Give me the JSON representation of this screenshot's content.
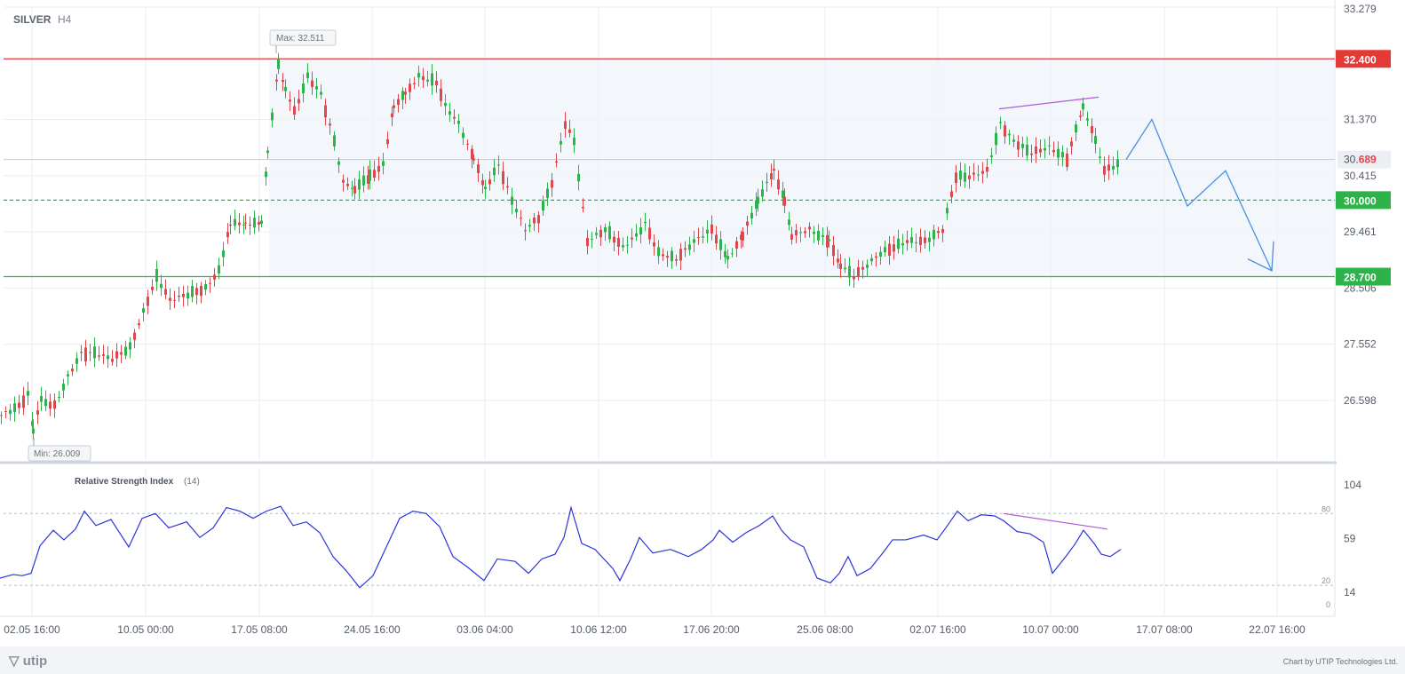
{
  "chart_data": {
    "type": "candlestick",
    "symbol": "SILVER",
    "timeframe": "H4",
    "price_axis": {
      "range": [
        25.6,
        33.279
      ],
      "ticks": [
        33.279,
        31.37,
        30.415,
        29.461,
        28.506,
        27.552,
        26.598
      ]
    },
    "levels": [
      {
        "label": "32.400",
        "value": 32.4,
        "color": "#e53935"
      },
      {
        "label": "30.000",
        "value": 30.0,
        "color": "#2db34a",
        "style": "dashed"
      },
      {
        "label": "28.700",
        "value": 28.7,
        "color": "#2db34a"
      }
    ],
    "current_price": {
      "label_main": "30.",
      "label_tail": "689",
      "value": 30.689
    },
    "max_label": "Max: 32.511",
    "min_label": "Min: 26.009",
    "x_labels": [
      "02.05 16:00",
      "10.05 00:00",
      "17.05 08:00",
      "24.05 16:00",
      "03.06 04:00",
      "10.06 12:00",
      "17.06 20:00",
      "25.06 08:00",
      "02.07 16:00",
      "10.07 00:00",
      "17.07 08:00",
      "22.07 16:00"
    ],
    "price_path": [
      [
        0,
        26.35
      ],
      [
        20,
        26.5
      ],
      [
        30,
        26.7
      ],
      [
        36,
        26.1
      ],
      [
        45,
        26.6
      ],
      [
        60,
        26.5
      ],
      [
        75,
        27.0
      ],
      [
        90,
        27.4
      ],
      [
        105,
        27.4
      ],
      [
        125,
        27.3
      ],
      [
        145,
        27.5
      ],
      [
        160,
        28.1
      ],
      [
        175,
        28.7
      ],
      [
        190,
        28.3
      ],
      [
        210,
        28.4
      ],
      [
        230,
        28.5
      ],
      [
        245,
        28.8
      ],
      [
        258,
        29.6
      ],
      [
        275,
        29.6
      ],
      [
        293,
        29.6
      ],
      [
        300,
        30.8
      ],
      [
        312,
        32.3
      ],
      [
        320,
        31.9
      ],
      [
        330,
        31.5
      ],
      [
        345,
        32.1
      ],
      [
        360,
        31.8
      ],
      [
        375,
        31.0
      ],
      [
        385,
        30.3
      ],
      [
        398,
        30.2
      ],
      [
        415,
        30.4
      ],
      [
        430,
        30.6
      ],
      [
        442,
        31.6
      ],
      [
        455,
        31.8
      ],
      [
        470,
        32.1
      ],
      [
        490,
        32.0
      ],
      [
        500,
        31.6
      ],
      [
        515,
        31.3
      ],
      [
        532,
        30.7
      ],
      [
        545,
        30.2
      ],
      [
        560,
        30.6
      ],
      [
        575,
        30.0
      ],
      [
        590,
        29.5
      ],
      [
        605,
        29.7
      ],
      [
        620,
        30.3
      ],
      [
        635,
        31.3
      ],
      [
        645,
        31.0
      ],
      [
        650,
        30.4
      ],
      [
        660,
        29.3
      ],
      [
        680,
        29.5
      ],
      [
        700,
        29.2
      ],
      [
        715,
        29.4
      ],
      [
        725,
        29.6
      ],
      [
        740,
        29.1
      ],
      [
        760,
        29.0
      ],
      [
        780,
        29.3
      ],
      [
        800,
        29.5
      ],
      [
        818,
        29.0
      ],
      [
        835,
        29.4
      ],
      [
        852,
        30.0
      ],
      [
        870,
        30.5
      ],
      [
        882,
        30.0
      ],
      [
        890,
        29.4
      ],
      [
        910,
        29.5
      ],
      [
        932,
        29.3
      ],
      [
        945,
        28.9
      ],
      [
        960,
        28.7
      ],
      [
        975,
        28.9
      ],
      [
        990,
        29.1
      ],
      [
        1005,
        29.2
      ],
      [
        1020,
        29.3
      ],
      [
        1040,
        29.3
      ],
      [
        1060,
        29.5
      ],
      [
        1075,
        30.4
      ],
      [
        1090,
        30.4
      ],
      [
        1110,
        30.5
      ],
      [
        1125,
        31.3
      ],
      [
        1140,
        31.0
      ],
      [
        1160,
        30.8
      ],
      [
        1180,
        30.9
      ],
      [
        1200,
        30.7
      ],
      [
        1218,
        31.6
      ],
      [
        1232,
        31.0
      ],
      [
        1242,
        30.5
      ],
      [
        1262,
        30.65
      ]
    ],
    "forecast_path": [
      [
        1268,
        30.69
      ],
      [
        1297,
        31.37
      ],
      [
        1337,
        29.9
      ],
      [
        1380,
        30.5
      ],
      [
        1432,
        28.8
      ]
    ],
    "forecast_tail": [
      [
        1405,
        29.0
      ],
      [
        1432,
        28.8
      ],
      [
        1434,
        29.3
      ]
    ],
    "divergence_price": [
      [
        1125,
        31.55
      ],
      [
        1237,
        31.75
      ]
    ],
    "rsi": {
      "title": "Relative Strength Index",
      "period": "(14)",
      "axis_range": [
        0,
        104
      ],
      "right_ticks": [
        104,
        59,
        14
      ],
      "inner_ticks": [
        80,
        20,
        0
      ],
      "levels": [
        80,
        20
      ],
      "path": [
        [
          0,
          26
        ],
        [
          15,
          29
        ],
        [
          25,
          28
        ],
        [
          35,
          30
        ],
        [
          45,
          53
        ],
        [
          60,
          66
        ],
        [
          72,
          58
        ],
        [
          85,
          67
        ],
        [
          95,
          82
        ],
        [
          108,
          70
        ],
        [
          125,
          75
        ],
        [
          145,
          52
        ],
        [
          160,
          76
        ],
        [
          175,
          80
        ],
        [
          190,
          68
        ],
        [
          210,
          73
        ],
        [
          225,
          60
        ],
        [
          240,
          68
        ],
        [
          255,
          85
        ],
        [
          270,
          82
        ],
        [
          285,
          76
        ],
        [
          300,
          82
        ],
        [
          316,
          86
        ],
        [
          330,
          70
        ],
        [
          345,
          73
        ],
        [
          360,
          64
        ],
        [
          375,
          44
        ],
        [
          390,
          32
        ],
        [
          405,
          18
        ],
        [
          420,
          28
        ],
        [
          435,
          52
        ],
        [
          450,
          76
        ],
        [
          465,
          82
        ],
        [
          480,
          80
        ],
        [
          495,
          69
        ],
        [
          510,
          44
        ],
        [
          525,
          36
        ],
        [
          545,
          24
        ],
        [
          560,
          42
        ],
        [
          580,
          40
        ],
        [
          595,
          30
        ],
        [
          610,
          42
        ],
        [
          625,
          46
        ],
        [
          635,
          60
        ],
        [
          643,
          85
        ],
        [
          655,
          55
        ],
        [
          670,
          50
        ],
        [
          690,
          34
        ],
        [
          698,
          24
        ],
        [
          710,
          42
        ],
        [
          720,
          60
        ],
        [
          735,
          47
        ],
        [
          755,
          50
        ],
        [
          775,
          44
        ],
        [
          790,
          50
        ],
        [
          803,
          58
        ],
        [
          810,
          66
        ],
        [
          825,
          56
        ],
        [
          840,
          64
        ],
        [
          855,
          70
        ],
        [
          870,
          78
        ],
        [
          880,
          66
        ],
        [
          890,
          58
        ],
        [
          905,
          52
        ],
        [
          920,
          26
        ],
        [
          935,
          22
        ],
        [
          945,
          30
        ],
        [
          955,
          44
        ],
        [
          965,
          28
        ],
        [
          980,
          34
        ],
        [
          995,
          48
        ],
        [
          1005,
          58
        ],
        [
          1020,
          58
        ],
        [
          1040,
          62
        ],
        [
          1055,
          58
        ],
        [
          1065,
          68
        ],
        [
          1078,
          82
        ],
        [
          1090,
          74
        ],
        [
          1105,
          79
        ],
        [
          1120,
          78
        ],
        [
          1130,
          74
        ],
        [
          1145,
          65
        ],
        [
          1160,
          63
        ],
        [
          1175,
          56
        ],
        [
          1185,
          30
        ],
        [
          1200,
          44
        ],
        [
          1210,
          54
        ],
        [
          1220,
          66
        ],
        [
          1232,
          55
        ],
        [
          1240,
          46
        ],
        [
          1250,
          44
        ],
        [
          1262,
          50
        ]
      ],
      "divergence": [
        [
          1130,
          80
        ],
        [
          1247,
          67
        ]
      ]
    },
    "footer": {
      "brand": "utip",
      "credit": "Chart by UTIP Technologies Ltd."
    }
  }
}
